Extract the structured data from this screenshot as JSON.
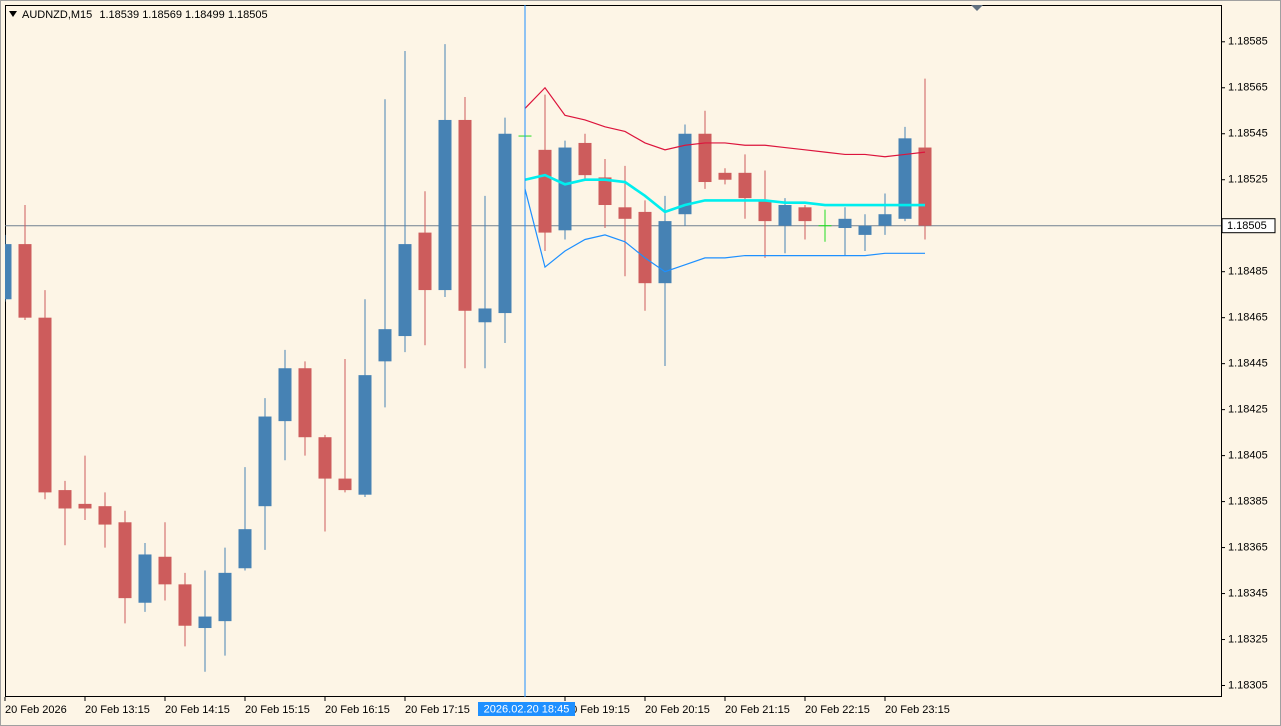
{
  "chart_data": {
    "type": "candlestick",
    "title": "AUDNZD,M15",
    "categories": [
      "20 Feb 2026",
      null,
      null,
      null,
      "20 Feb 13:15",
      null,
      null,
      null,
      "20 Feb 14:15",
      null,
      null,
      null,
      "20 Feb 15:15",
      null,
      null,
      null,
      "20 Feb 16:15",
      null,
      null,
      null,
      "20 Feb 17:15",
      null,
      null,
      null,
      null,
      null,
      null,
      null,
      "20 Feb 19:15",
      null,
      null,
      null,
      "20 Feb 20:15",
      null,
      null,
      null,
      "20 Feb 21:15",
      null,
      null,
      null,
      "20 Feb 22:15",
      null,
      null,
      null,
      "20 Feb 23:15",
      null,
      null
    ],
    "open": [
      1.18473,
      1.18497,
      1.18465,
      1.1839,
      1.18384,
      1.18383,
      1.18376,
      1.18341,
      1.18361,
      1.18349,
      1.1833,
      1.18333,
      1.18356,
      1.18383,
      1.1842,
      1.18443,
      1.18413,
      1.18395,
      1.18388,
      1.18446,
      1.18457,
      1.18502,
      1.18477,
      1.18551,
      1.18463,
      1.18467,
      1.18544,
      1.18538,
      1.18503,
      1.18541,
      1.18526,
      1.18513,
      1.18511,
      1.1848,
      1.1851,
      1.18545,
      1.18528,
      1.18528,
      1.18516,
      1.18505,
      1.18513,
      1.18505,
      1.18504,
      1.18501,
      1.18505,
      1.18508,
      1.18539
    ],
    "high": [
      1.18501,
      1.18514,
      1.18477,
      1.18394,
      1.18405,
      1.18389,
      1.18381,
      1.18367,
      1.18376,
      1.18354,
      1.18355,
      1.18365,
      1.184,
      1.1843,
      1.18451,
      1.18446,
      1.18414,
      1.18447,
      1.18473,
      1.1856,
      1.18581,
      1.1852,
      1.18584,
      1.18561,
      1.18518,
      1.18552,
      1.18545,
      1.18562,
      1.18542,
      1.18545,
      1.18534,
      1.18531,
      1.18516,
      1.18518,
      1.18549,
      1.18555,
      1.1853,
      1.18536,
      1.18529,
      1.18517,
      1.18514,
      1.18512,
      1.18513,
      1.1851,
      1.18519,
      1.18548,
      1.18569
    ],
    "low": [
      1.18472,
      1.18464,
      1.18386,
      1.18366,
      1.18377,
      1.18365,
      1.18332,
      1.18337,
      1.18342,
      1.18322,
      1.18311,
      1.18318,
      1.18355,
      1.18364,
      1.18403,
      1.18405,
      1.18372,
      1.18389,
      1.18387,
      1.18426,
      1.1845,
      1.18453,
      1.18474,
      1.18443,
      1.18443,
      1.18454,
      1.18542,
      1.18494,
      1.18499,
      1.18525,
      1.18504,
      1.18483,
      1.18468,
      1.18444,
      1.18505,
      1.18521,
      1.18523,
      1.18508,
      1.18491,
      1.18493,
      1.18499,
      1.18498,
      1.18492,
      1.18494,
      1.18501,
      1.18507,
      1.18499
    ],
    "close": [
      1.18497,
      1.18465,
      1.18389,
      1.18382,
      1.18382,
      1.18375,
      1.18343,
      1.18362,
      1.18349,
      1.18331,
      1.18335,
      1.18354,
      1.18373,
      1.18422,
      1.18443,
      1.18413,
      1.18395,
      1.1839,
      1.1844,
      1.1846,
      1.18497,
      1.18477,
      1.18551,
      1.18468,
      1.18469,
      1.18545,
      1.18544,
      1.18502,
      1.18539,
      1.18527,
      1.18514,
      1.18508,
      1.1848,
      1.18507,
      1.18545,
      1.18524,
      1.18525,
      1.18517,
      1.18507,
      1.18514,
      1.18507,
      1.18505,
      1.18508,
      1.18505,
      1.1851,
      1.18543,
      1.18505
    ],
    "up_color": "#4682b4",
    "down_color": "#cd5c5c",
    "doji_color": "#22dd22",
    "series": [
      {
        "color": "#dc143c",
        "width": 1.2,
        "values": [
          null,
          null,
          null,
          null,
          null,
          null,
          null,
          null,
          null,
          null,
          null,
          null,
          null,
          null,
          null,
          null,
          null,
          null,
          null,
          null,
          null,
          null,
          null,
          null,
          null,
          null,
          1.18556,
          1.18565,
          1.18553,
          1.18551,
          1.18548,
          1.18546,
          1.18541,
          1.18538,
          1.1854,
          1.18541,
          1.18541,
          1.1854,
          1.1854,
          1.18539,
          1.18538,
          1.18537,
          1.18536,
          1.18536,
          1.18535,
          1.18536,
          1.18537
        ]
      },
      {
        "color": "#00eeee",
        "width": 2.6,
        "values": [
          null,
          null,
          null,
          null,
          null,
          null,
          null,
          null,
          null,
          null,
          null,
          null,
          null,
          null,
          null,
          null,
          null,
          null,
          null,
          null,
          null,
          null,
          null,
          null,
          null,
          null,
          1.18525,
          1.18527,
          1.18523,
          1.18525,
          1.18525,
          1.18524,
          1.18518,
          1.18511,
          1.18514,
          1.18516,
          1.18516,
          1.18516,
          1.18516,
          1.18515,
          1.18515,
          1.18514,
          1.18514,
          1.18514,
          1.18514,
          1.18514,
          1.18514
        ]
      },
      {
        "color": "#1e90ff",
        "width": 1.2,
        "values": [
          null,
          null,
          null,
          null,
          null,
          null,
          null,
          null,
          null,
          null,
          null,
          null,
          null,
          null,
          null,
          null,
          null,
          null,
          null,
          null,
          null,
          null,
          null,
          null,
          null,
          null,
          1.18521,
          1.18487,
          1.18494,
          1.18499,
          1.18501,
          1.18498,
          1.18491,
          1.18485,
          1.18488,
          1.18491,
          1.18491,
          1.18492,
          1.18492,
          1.18492,
          1.18492,
          1.18492,
          1.18492,
          1.18492,
          1.18493,
          1.18493,
          1.18493
        ]
      }
    ],
    "ylim": [
      1.183,
      1.18601
    ],
    "yticks": [
      1.18585,
      1.18565,
      1.18545,
      1.18525,
      1.18485,
      1.18465,
      1.18445,
      1.18425,
      1.18405,
      1.18385,
      1.18365,
      1.18345,
      1.18325,
      1.18305
    ],
    "current_price": 1.18505,
    "crosshair": {
      "label": "2026.02.20 18:45",
      "category_index": 26
    }
  }
}
